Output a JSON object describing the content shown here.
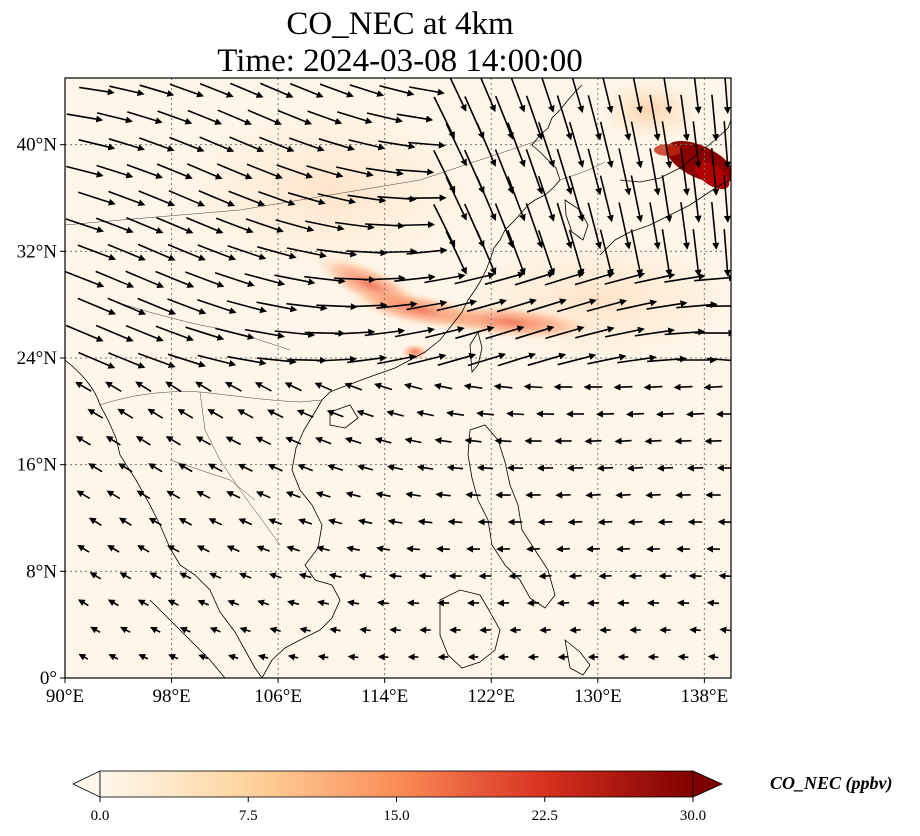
{
  "title": {
    "line1": "CO_NEC at 4km",
    "line2": "Time: 2024-03-08 14:00:00"
  },
  "map": {
    "lon_range": [
      90,
      140
    ],
    "lat_range": [
      0,
      45
    ],
    "lon_ticks": [
      "90°E",
      "98°E",
      "106°E",
      "114°E",
      "122°E",
      "130°E",
      "138°E"
    ],
    "lat_ticks": [
      "0°",
      "8°N",
      "16°N",
      "24°N",
      "32°N",
      "40°N"
    ],
    "gridlines": true,
    "plume_color": "#c0280f",
    "hotspot_color": "#8b0000",
    "background_color": "#fff5e8"
  },
  "colorbar": {
    "label": "CO_NEC (ppbv)",
    "ticks": [
      "0.0",
      "7.5",
      "15.0",
      "22.5",
      "30.0"
    ],
    "range": [
      0,
      30
    ],
    "colormap": "OrRd",
    "extend": "both"
  }
}
